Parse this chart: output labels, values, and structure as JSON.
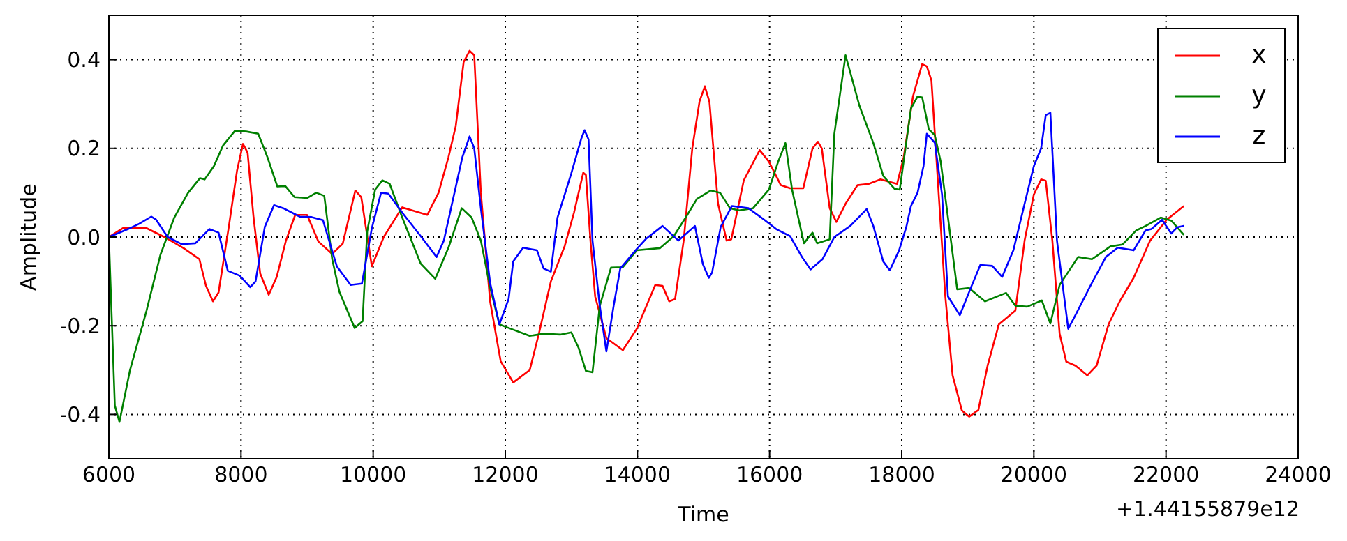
{
  "chart_data": {
    "type": "line",
    "xlabel": "Time",
    "ylabel": "Amplitude",
    "annotations": [
      "+1.44155879e12"
    ],
    "xlim": [
      6000,
      24000
    ],
    "xticks": [
      6000,
      8000,
      10000,
      12000,
      14000,
      16000,
      18000,
      20000,
      22000,
      24000
    ],
    "ylim": [
      -0.5,
      0.5
    ],
    "yticks": [
      -0.4,
      -0.2,
      {
        "value": 0,
        "label": "0.0"
      },
      0.2,
      0.4
    ],
    "grid": true,
    "legend": "top right",
    "line_style": "solid",
    "marker": "none",
    "series": [
      {
        "name": "x",
        "color": "#ff0000",
        "x": [
          6000,
          6210,
          6570,
          6840,
          7130,
          7370,
          7470,
          7575,
          7660,
          7815,
          7940,
          8030,
          8100,
          8190,
          8290,
          8420,
          8540,
          8680,
          8820,
          9000,
          9170,
          9380,
          9540,
          9730,
          9820,
          9980,
          10160,
          10440,
          10820,
          10990,
          11140,
          11250,
          11370,
          11460,
          11530,
          11630,
          11770,
          11930,
          12120,
          12370,
          12510,
          12690,
          12900,
          13040,
          13180,
          13220,
          13290,
          13360,
          13530,
          13780,
          13990,
          14270,
          14380,
          14480,
          14570,
          14700,
          14830,
          14940,
          15020,
          15090,
          15220,
          15350,
          15420,
          15610,
          15850,
          15990,
          16170,
          16310,
          16510,
          16650,
          16730,
          16790,
          16910,
          17010,
          17150,
          17330,
          17500,
          17680,
          17930,
          18030,
          18170,
          18310,
          18380,
          18450,
          18560,
          18660,
          18770,
          18910,
          19020,
          19160,
          19300,
          19470,
          19720,
          19860,
          20000,
          20110,
          20180,
          20280,
          20390,
          20490,
          20630,
          20810,
          20950,
          21130,
          21300,
          21510,
          21760,
          22010,
          22270
        ],
        "values": [
          0.0,
          0.02,
          0.02,
          0.0,
          -0.025,
          -0.05,
          -0.11,
          -0.145,
          -0.125,
          0.023,
          0.15,
          0.21,
          0.19,
          0.044,
          -0.082,
          -0.13,
          -0.09,
          -0.008,
          0.05,
          0.05,
          -0.01,
          -0.038,
          -0.015,
          0.105,
          0.09,
          -0.066,
          0.0,
          0.067,
          0.05,
          0.1,
          0.18,
          0.25,
          0.395,
          0.42,
          0.41,
          0.1,
          -0.145,
          -0.28,
          -0.328,
          -0.3,
          -0.217,
          -0.1,
          -0.02,
          0.055,
          0.145,
          0.14,
          -0.01,
          -0.134,
          -0.228,
          -0.255,
          -0.207,
          -0.108,
          -0.11,
          -0.145,
          -0.14,
          -0.008,
          0.2,
          0.306,
          0.34,
          0.305,
          0.075,
          -0.008,
          -0.005,
          0.128,
          0.196,
          0.17,
          0.117,
          0.11,
          0.11,
          0.2,
          0.215,
          0.2,
          0.065,
          0.034,
          0.075,
          0.117,
          0.12,
          0.13,
          0.12,
          0.18,
          0.317,
          0.39,
          0.385,
          0.353,
          0.096,
          -0.134,
          -0.312,
          -0.391,
          -0.405,
          -0.39,
          -0.29,
          -0.197,
          -0.166,
          -0.008,
          0.096,
          0.13,
          0.127,
          -0.008,
          -0.218,
          -0.281,
          -0.29,
          -0.312,
          -0.29,
          -0.197,
          -0.145,
          -0.092,
          -0.008,
          0.039,
          0.07
        ]
      },
      {
        "name": "y",
        "color": "#008000",
        "x": [
          6000,
          6090,
          6160,
          6320,
          6570,
          6780,
          6990,
          7200,
          7380,
          7450,
          7590,
          7730,
          7910,
          8080,
          8260,
          8400,
          8550,
          8670,
          8810,
          9000,
          9140,
          9260,
          9380,
          9490,
          9720,
          9840,
          9910,
          10030,
          10140,
          10250,
          10440,
          10720,
          10940,
          11140,
          11340,
          11490,
          11630,
          11770,
          11910,
          12050,
          12370,
          12580,
          12830,
          13000,
          13110,
          13220,
          13320,
          13430,
          13600,
          13780,
          13990,
          14340,
          14550,
          14730,
          14900,
          15110,
          15250,
          15400,
          15540,
          15750,
          15990,
          16130,
          16240,
          16340,
          16520,
          16650,
          16720,
          16910,
          16980,
          17150,
          17360,
          17570,
          17720,
          17890,
          17970,
          18140,
          18240,
          18310,
          18410,
          18500,
          18590,
          18700,
          18840,
          19020,
          19260,
          19580,
          19720,
          19900,
          20120,
          20250,
          20390,
          20670,
          20880,
          21160,
          21340,
          21550,
          21690,
          21920,
          22080,
          22270
        ],
        "values": [
          0.0,
          -0.38,
          -0.417,
          -0.3,
          -0.166,
          -0.04,
          0.044,
          0.1,
          0.133,
          0.13,
          0.16,
          0.207,
          0.24,
          0.238,
          0.233,
          0.18,
          0.114,
          0.115,
          0.09,
          0.088,
          0.1,
          0.093,
          -0.05,
          -0.124,
          -0.205,
          -0.19,
          0.013,
          0.107,
          0.128,
          0.12,
          0.044,
          -0.06,
          -0.094,
          -0.024,
          0.065,
          0.044,
          -0.008,
          -0.113,
          -0.197,
          -0.205,
          -0.223,
          -0.218,
          -0.22,
          -0.215,
          -0.25,
          -0.302,
          -0.305,
          -0.155,
          -0.069,
          -0.068,
          -0.03,
          -0.025,
          0.002,
          0.044,
          0.086,
          0.105,
          0.1,
          0.065,
          0.06,
          0.065,
          0.107,
          0.17,
          0.212,
          0.107,
          -0.014,
          0.01,
          -0.014,
          -0.005,
          0.233,
          0.41,
          0.296,
          0.212,
          0.138,
          0.109,
          0.107,
          0.29,
          0.317,
          0.315,
          0.243,
          0.23,
          0.17,
          0.044,
          -0.118,
          -0.115,
          -0.145,
          -0.126,
          -0.155,
          -0.157,
          -0.143,
          -0.195,
          -0.108,
          -0.045,
          -0.05,
          -0.021,
          -0.017,
          0.015,
          0.025,
          0.044,
          0.037,
          0.005
        ]
      },
      {
        "name": "z",
        "color": "#0000ff",
        "x": [
          6000,
          6290,
          6460,
          6640,
          6710,
          6890,
          7100,
          7310,
          7520,
          7660,
          7800,
          7980,
          8140,
          8220,
          8360,
          8500,
          8640,
          8890,
          9070,
          9240,
          9450,
          9660,
          9830,
          9980,
          10120,
          10230,
          10440,
          10720,
          10960,
          11070,
          11210,
          11350,
          11460,
          11530,
          11630,
          11770,
          11910,
          12050,
          12120,
          12270,
          12480,
          12580,
          12690,
          12790,
          13000,
          13150,
          13200,
          13260,
          13320,
          13430,
          13530,
          13640,
          13740,
          13990,
          14130,
          14380,
          14620,
          14870,
          14990,
          15080,
          15130,
          15260,
          15430,
          15680,
          15920,
          16100,
          16310,
          16490,
          16620,
          16800,
          16980,
          17220,
          17470,
          17570,
          17720,
          17820,
          17960,
          18070,
          18140,
          18240,
          18330,
          18380,
          18500,
          18610,
          18700,
          18880,
          19050,
          19190,
          19370,
          19520,
          19690,
          19860,
          20000,
          20110,
          20180,
          20250,
          20350,
          20520,
          20630,
          20880,
          21090,
          21270,
          21510,
          21690,
          21780,
          21940,
          22080,
          22170,
          22270
        ],
        "values": [
          0.0,
          0.018,
          0.03,
          0.046,
          0.04,
          0.0,
          -0.016,
          -0.014,
          0.018,
          0.01,
          -0.076,
          -0.087,
          -0.113,
          -0.1,
          0.023,
          0.072,
          0.065,
          0.046,
          0.045,
          0.038,
          -0.066,
          -0.108,
          -0.105,
          0.02,
          0.1,
          0.098,
          0.055,
          0.002,
          -0.045,
          -0.008,
          0.086,
          0.18,
          0.227,
          0.2,
          0.065,
          -0.103,
          -0.197,
          -0.14,
          -0.055,
          -0.024,
          -0.03,
          -0.071,
          -0.078,
          0.044,
          0.144,
          0.222,
          0.241,
          0.22,
          -0.008,
          -0.155,
          -0.258,
          -0.155,
          -0.071,
          -0.027,
          -0.004,
          0.025,
          -0.008,
          0.025,
          -0.061,
          -0.092,
          -0.08,
          0.023,
          0.07,
          0.065,
          0.039,
          0.018,
          0.002,
          -0.045,
          -0.073,
          -0.05,
          0.0,
          0.025,
          0.063,
          0.025,
          -0.055,
          -0.075,
          -0.03,
          0.023,
          0.07,
          0.1,
          0.16,
          0.233,
          0.213,
          0.096,
          -0.134,
          -0.176,
          -0.113,
          -0.063,
          -0.065,
          -0.09,
          -0.03,
          0.075,
          0.16,
          0.2,
          0.275,
          0.28,
          -0.008,
          -0.207,
          -0.176,
          -0.103,
          -0.045,
          -0.024,
          -0.03,
          0.015,
          0.018,
          0.039,
          0.008,
          0.022,
          0.025
        ]
      }
    ]
  }
}
